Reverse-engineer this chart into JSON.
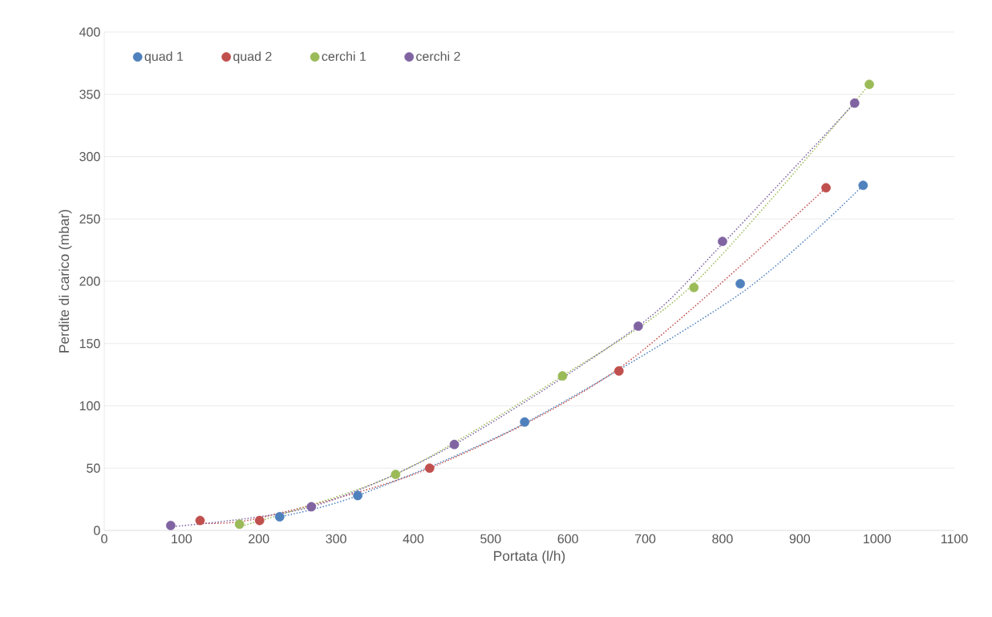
{
  "chart_data": {
    "type": "scatter",
    "xlabel": "Portata (l/h)",
    "ylabel": "Perdite di carico (mbar)",
    "xlim": [
      0,
      1100
    ],
    "xticks": [
      0,
      100,
      200,
      300,
      400,
      500,
      600,
      700,
      800,
      900,
      1000,
      1100
    ],
    "ylim": [
      0,
      400
    ],
    "yticks": [
      0,
      50,
      100,
      150,
      200,
      250,
      300,
      350,
      400
    ],
    "grid": "y",
    "legend": "top left",
    "marker": "circle",
    "series": [
      {
        "name": "quad 1",
        "color": "#4f81bd",
        "x": [
          227,
          328,
          544,
          823,
          982
        ],
        "values": [
          11,
          28,
          87,
          198,
          277
        ]
      },
      {
        "name": "quad 2",
        "color": "#c0504d",
        "x": [
          124,
          201,
          421,
          666,
          934
        ],
        "values": [
          8,
          8,
          50,
          128,
          275
        ]
      },
      {
        "name": "cerchi 1",
        "color": "#9bbb59",
        "x": [
          175,
          377,
          593,
          763,
          990
        ],
        "values": [
          5,
          45,
          124,
          195,
          358
        ]
      },
      {
        "name": "cerchi 2",
        "color": "#8064a2",
        "x": [
          86,
          268,
          453,
          691,
          800,
          971
        ],
        "values": [
          4,
          19,
          69,
          164,
          232,
          343
        ]
      },
      {
        "type": "line",
        "line_style": "dotted",
        "marker": "none",
        "color": "#4f81bd",
        "x": [
          227,
          328,
          544,
          823,
          982
        ],
        "values": [
          11,
          28,
          86,
          190,
          277
        ]
      },
      {
        "type": "line",
        "line_style": "dotted",
        "marker": "none",
        "color": "#c0504d",
        "x": [
          124,
          201,
          421,
          666,
          934
        ],
        "values": [
          6,
          10,
          50,
          130,
          275
        ]
      },
      {
        "type": "line",
        "line_style": "dotted",
        "marker": "none",
        "color": "#9bbb59",
        "x": [
          175,
          377,
          593,
          763,
          990
        ],
        "values": [
          3,
          45,
          124,
          198,
          358
        ]
      },
      {
        "type": "line",
        "line_style": "dotted",
        "marker": "none",
        "color": "#8064a2",
        "x": [
          86,
          268,
          453,
          691,
          800,
          971
        ],
        "values": [
          3,
          19,
          69,
          164,
          230,
          343
        ]
      }
    ]
  }
}
